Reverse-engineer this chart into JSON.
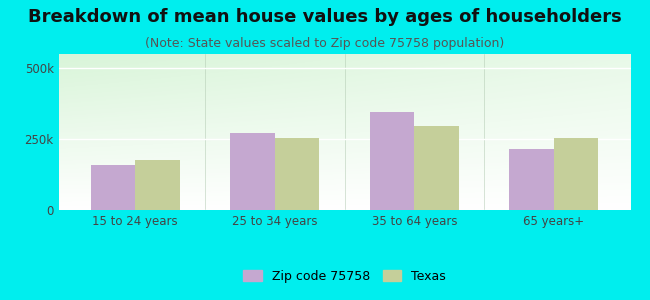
{
  "title": "Breakdown of mean house values by ages of householders",
  "subtitle": "(Note: State values scaled to Zip code 75758 population)",
  "categories": [
    "15 to 24 years",
    "25 to 34 years",
    "35 to 64 years",
    "65 years+"
  ],
  "zip_values": [
    160000,
    270000,
    345000,
    215000
  ],
  "texas_values": [
    175000,
    255000,
    295000,
    255000
  ],
  "zip_color": "#C5A8D0",
  "texas_color": "#C5CF9A",
  "background_outer": "#00EEEE",
  "ylim": [
    0,
    550000
  ],
  "ytick_labels": [
    "0",
    "250k",
    "500k"
  ],
  "ytick_values": [
    0,
    250000,
    500000
  ],
  "legend_zip_label": "Zip code 75758",
  "legend_texas_label": "Texas",
  "title_fontsize": 13,
  "subtitle_fontsize": 9,
  "bar_width": 0.32
}
